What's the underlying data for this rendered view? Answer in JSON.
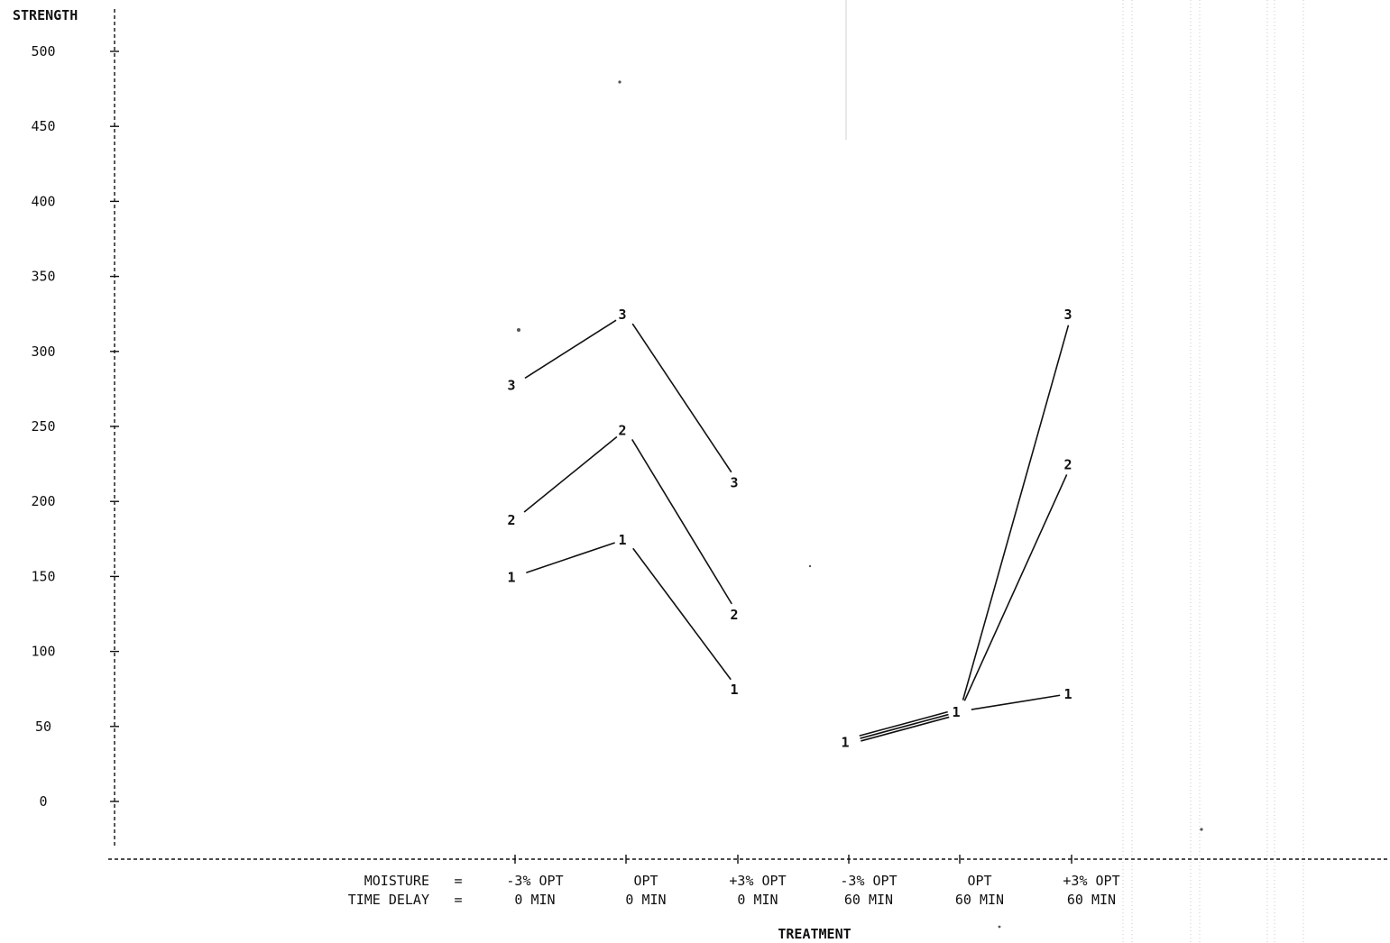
{
  "chart_data": {
    "type": "line",
    "title": "",
    "ylabel": "STRENGTH",
    "xlabel": "TREATMENT",
    "ylim": [
      0,
      500
    ],
    "yticks": [
      500,
      450,
      400,
      350,
      300,
      250,
      200,
      150,
      100,
      50,
      0
    ],
    "factor_rows": [
      {
        "label": "MOISTURE",
        "sep": "=",
        "values": [
          "-3% OPT",
          "OPT",
          "+3% OPT",
          "-3% OPT",
          "OPT",
          "+3% OPT"
        ]
      },
      {
        "label": "TIME DELAY",
        "sep": "=",
        "values": [
          "0 MIN",
          "0 MIN",
          "0 MIN",
          "60 MIN",
          "60 MIN",
          "60 MIN"
        ]
      }
    ],
    "categories": [
      "-3% OPT / 0 MIN",
      "OPT / 0 MIN",
      "+3% OPT / 0 MIN",
      "-3% OPT / 60 MIN",
      "OPT / 60 MIN",
      "+3% OPT / 60 MIN"
    ],
    "groups": [
      {
        "categories": [
          0,
          1,
          2
        ]
      },
      {
        "categories": [
          3,
          4,
          5
        ]
      }
    ],
    "series": [
      {
        "name": "",
        "marker": "1",
        "values": [
          150,
          175,
          75,
          40,
          60,
          72
        ]
      },
      {
        "name": "",
        "marker": "2",
        "values": [
          188,
          248,
          125,
          40,
          60,
          225
        ]
      },
      {
        "name": "",
        "marker": "3",
        "values": [
          278,
          325,
          213,
          40,
          60,
          325
        ]
      }
    ],
    "grid": false,
    "legend": "none"
  }
}
